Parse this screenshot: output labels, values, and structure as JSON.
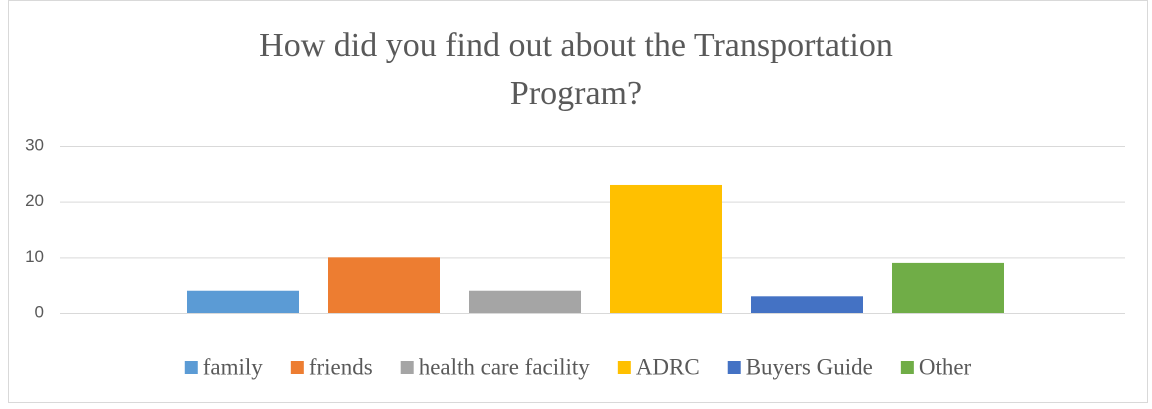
{
  "chart_data": {
    "type": "bar",
    "title": "How did you find out about the Transportation Program?",
    "series": [
      {
        "name": "family",
        "color": "#5B9BD5",
        "values": [
          4
        ]
      },
      {
        "name": "friends",
        "color": "#ED7D31",
        "values": [
          10
        ]
      },
      {
        "name": "health care facility",
        "color": "#A5A5A5",
        "values": [
          4
        ]
      },
      {
        "name": "ADRC",
        "color": "#FFC000",
        "values": [
          23
        ]
      },
      {
        "name": "Buyers Guide",
        "color": "#4472C4",
        "values": [
          3
        ]
      },
      {
        "name": "Other",
        "color": "#70AD47",
        "values": [
          9
        ]
      }
    ],
    "ylim": [
      0,
      30
    ],
    "yticks": [
      0,
      10,
      20,
      30
    ],
    "grid": true,
    "legend": "bottom"
  }
}
